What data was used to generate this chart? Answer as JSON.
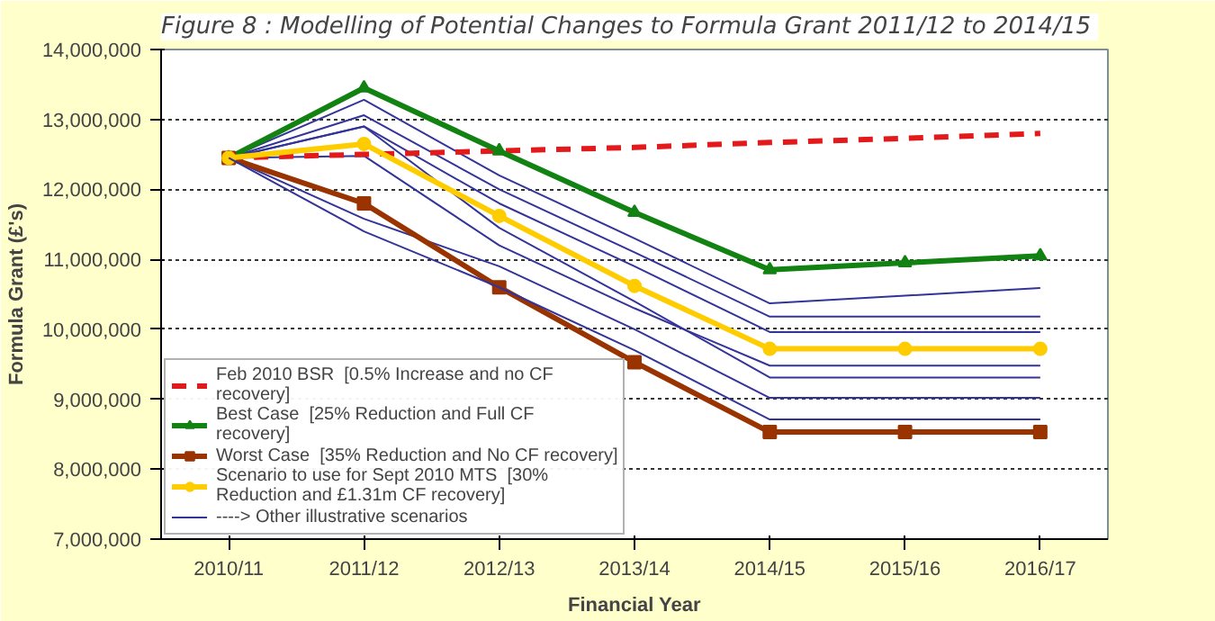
{
  "chart_data": {
    "type": "line",
    "title": "Figure 8 :  Modelling of Potential Changes to Formula Grant 2011/12 to 2014/15",
    "xlabel": "Financial Year",
    "ylabel": "Formula Grant (£'s)",
    "categories": [
      "2010/11",
      "2011/12",
      "2012/13",
      "2013/14",
      "2014/15",
      "2015/16",
      "2016/17"
    ],
    "ylim": [
      7000000,
      14000000
    ],
    "yticks": [
      {
        "value": 7000000,
        "label": "7,000,000"
      },
      {
        "value": 8000000,
        "label": "8,000,000"
      },
      {
        "value": 9000000,
        "label": "9,000,000"
      },
      {
        "value": 10000000,
        "label": "10,000,000"
      },
      {
        "value": 11000000,
        "label": "11,000,000"
      },
      {
        "value": 12000000,
        "label": "12,000,000"
      },
      {
        "value": 13000000,
        "label": "13,000,000"
      },
      {
        "value": 14000000,
        "label": "14,000,000"
      }
    ],
    "grid": "y",
    "legend": "bottom left",
    "series": [
      {
        "name": null,
        "color": "#333399",
        "values": [
          12450000,
          13280000,
          12200000,
          11300000,
          10370000,
          10480000,
          10590000
        ],
        "marker": "none"
      },
      {
        "name": null,
        "color": "#333399",
        "values": [
          12450000,
          13060000,
          12000000,
          11100000,
          10180000,
          10180000,
          10180000
        ],
        "marker": "none"
      },
      {
        "name": null,
        "color": "#333399",
        "values": [
          12450000,
          12900000,
          11800000,
          10900000,
          9960000,
          9960000,
          9960000
        ],
        "marker": "none"
      },
      {
        "name": null,
        "color": "#333399",
        "values": [
          12450000,
          12480000,
          11200000,
          10300000,
          9480000,
          9480000,
          9480000
        ],
        "marker": "none"
      },
      {
        "name": null,
        "color": "#333399",
        "values": [
          12450000,
          12900000,
          11450000,
          10400000,
          9310000,
          9310000,
          9310000
        ],
        "marker": "none"
      },
      {
        "name": null,
        "color": "#333399",
        "values": [
          12450000,
          11580000,
          10900000,
          10000000,
          9020000,
          9020000,
          9020000
        ],
        "marker": "none"
      },
      {
        "name": "Feb 2010 BSR  [0.5% Increase and no CF recovery]",
        "color": "#e31a1c",
        "values": [
          12450000,
          12500000,
          12550000,
          12600000,
          12670000,
          12730000,
          12800000
        ],
        "marker": "none",
        "line_style": "dashed"
      },
      {
        "name": "Best Case  [25% Reduction and Full CF recovery]",
        "color": "#128212",
        "values": [
          12450000,
          13450000,
          12550000,
          11670000,
          10850000,
          10950000,
          11050000
        ],
        "marker": "triangle"
      },
      {
        "name": "Worst Case  [35% Reduction and No CF recovery]",
        "color": "#993300",
        "values": [
          12450000,
          11800000,
          10600000,
          9530000,
          8530000,
          8530000,
          8530000
        ],
        "marker": "square"
      },
      {
        "name": "Scenario to use for Sept 2010 MTS  [30% Reduction and £1.31m CF recovery]",
        "color": "#ffcc00",
        "values": [
          12450000,
          12650000,
          11620000,
          10620000,
          9720000,
          9720000,
          9720000
        ],
        "marker": "circle"
      },
      {
        "name": "----> Other illustrative scenarios",
        "color": "#333399",
        "values": [
          12450000,
          11400000,
          10600000,
          9700000,
          8710000,
          8710000,
          8710000
        ],
        "marker": "none"
      }
    ]
  }
}
